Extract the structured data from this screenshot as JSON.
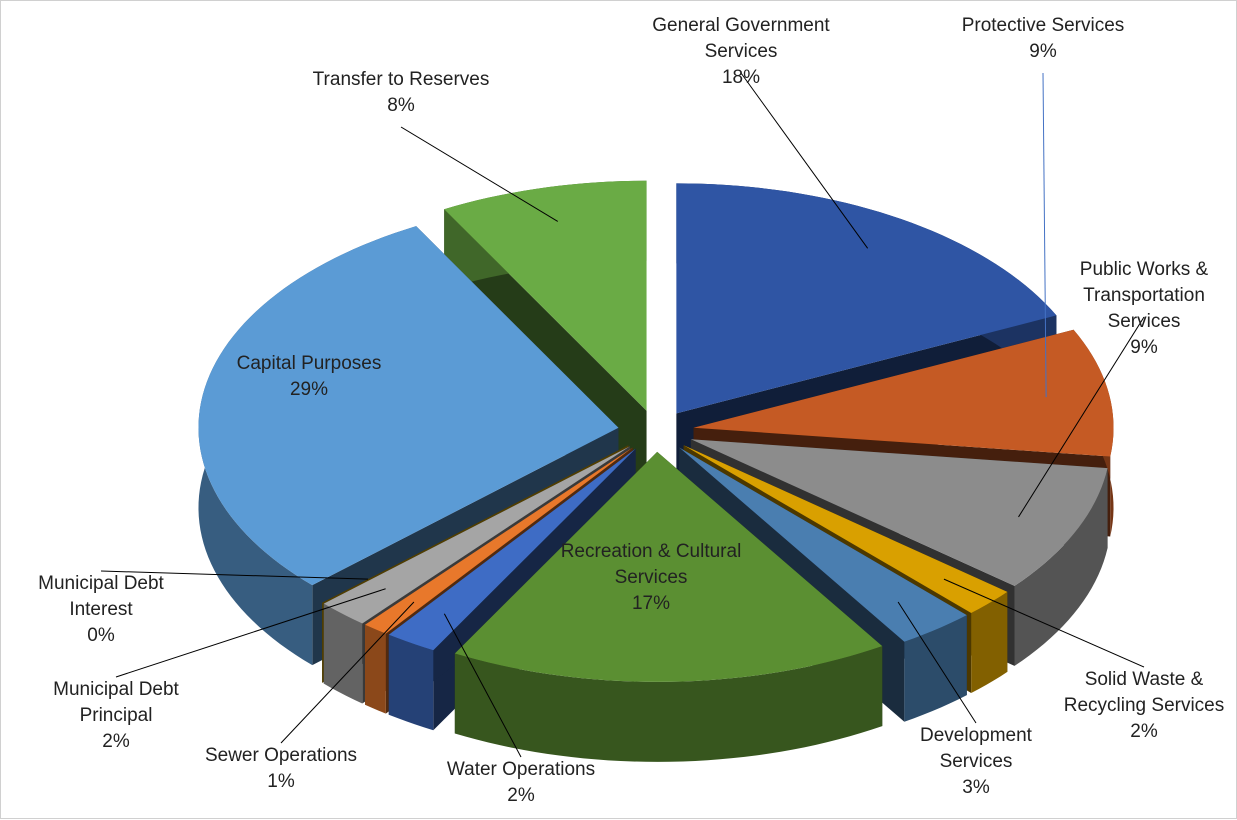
{
  "chart_data": {
    "type": "pie",
    "categories": [
      "General Government Services",
      "Protective Services",
      "Public Works & Transportation Services",
      "Solid Waste & Recycling Services",
      "Development Services",
      "Recreation & Cultural Services",
      "Water Operations",
      "Sewer Operations",
      "Municipal Debt Principal",
      "Municipal Debt Interest",
      "Capital Purposes",
      "Transfer to Reserves"
    ],
    "values": [
      18,
      9,
      9,
      2,
      3,
      17,
      2,
      1,
      2,
      0,
      29,
      8
    ],
    "value_labels": [
      "18%",
      "9%",
      "9%",
      "2%",
      "3%",
      "17%",
      "2%",
      "1%",
      "2%",
      "0%",
      "29%",
      "8%"
    ],
    "colors": [
      "#2f55a4",
      "#c55a24",
      "#8c8c8c",
      "#d9a000",
      "#4a7eb0",
      "#5b8f32",
      "#3e6cc5",
      "#e8782b",
      "#a5a5a5",
      "#e8b000",
      "#5b9bd5",
      "#6aab45"
    ]
  }
}
